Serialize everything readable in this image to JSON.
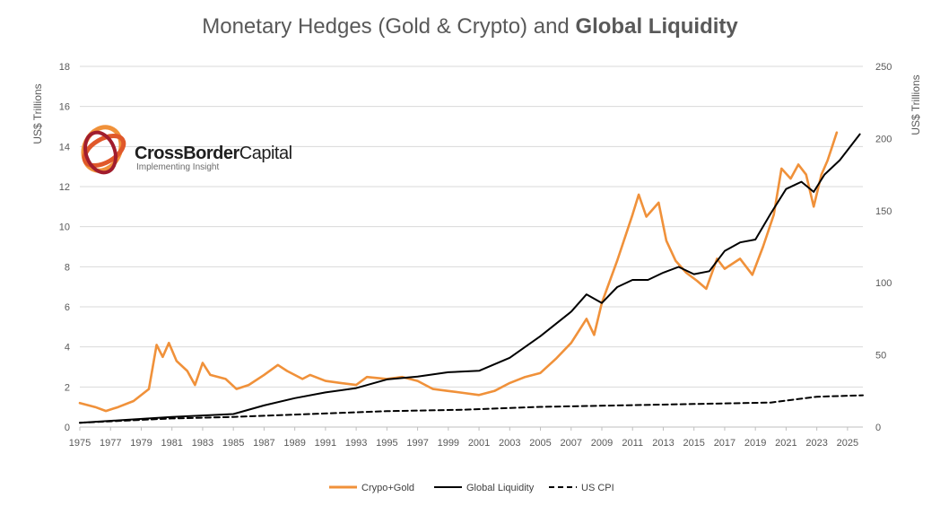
{
  "chart_data": {
    "type": "line",
    "title": "Monetary Hedges (Gold & Crypto) and ",
    "title_bold": "Global Liquidity",
    "ylabel_left": "US$ Trillions",
    "ylabel_right": "US$ Trillions",
    "ylim_left": [
      0,
      18
    ],
    "ylim_right": [
      0,
      250
    ],
    "xlim": [
      1975,
      2026
    ],
    "x_ticks": [
      "1975",
      "1977",
      "1979",
      "1981",
      "1983",
      "1985",
      "1987",
      "1989",
      "1991",
      "1993",
      "1995",
      "1997",
      "1999",
      "2001",
      "2003",
      "2005",
      "2007",
      "2009",
      "2011",
      "2013",
      "2015",
      "2017",
      "2019",
      "2021",
      "2023",
      "2025"
    ],
    "y_ticks_left": [
      "0",
      "2",
      "4",
      "6",
      "8",
      "10",
      "12",
      "14",
      "16",
      "18"
    ],
    "y_ticks_right": [
      "0",
      "50",
      "100",
      "150",
      "200",
      "250"
    ],
    "grid": "horizontal",
    "legend_position": "bottom",
    "series": [
      {
        "name": "Crypo+Gold",
        "axis": "left",
        "color": "#f0913a",
        "style": "solid",
        "points": [
          [
            1975,
            1.2
          ],
          [
            1976,
            1.0
          ],
          [
            1976.7,
            0.8
          ],
          [
            1977.5,
            1.0
          ],
          [
            1978.5,
            1.3
          ],
          [
            1979.5,
            1.9
          ],
          [
            1980,
            4.1
          ],
          [
            1980.4,
            3.5
          ],
          [
            1980.8,
            4.2
          ],
          [
            1981.3,
            3.3
          ],
          [
            1982,
            2.8
          ],
          [
            1982.5,
            2.1
          ],
          [
            1983,
            3.2
          ],
          [
            1983.5,
            2.6
          ],
          [
            1984.5,
            2.4
          ],
          [
            1985.2,
            1.9
          ],
          [
            1986,
            2.1
          ],
          [
            1987,
            2.6
          ],
          [
            1987.9,
            3.1
          ],
          [
            1988.5,
            2.8
          ],
          [
            1989.5,
            2.4
          ],
          [
            1990,
            2.6
          ],
          [
            1991,
            2.3
          ],
          [
            1992,
            2.2
          ],
          [
            1993,
            2.1
          ],
          [
            1993.7,
            2.5
          ],
          [
            1995,
            2.4
          ],
          [
            1996,
            2.5
          ],
          [
            1997,
            2.3
          ],
          [
            1998,
            1.9
          ],
          [
            1999,
            1.8
          ],
          [
            2000,
            1.7
          ],
          [
            2001,
            1.6
          ],
          [
            2002,
            1.8
          ],
          [
            2003,
            2.2
          ],
          [
            2004,
            2.5
          ],
          [
            2005,
            2.7
          ],
          [
            2006,
            3.4
          ],
          [
            2007,
            4.2
          ],
          [
            2008,
            5.4
          ],
          [
            2008.5,
            4.6
          ],
          [
            2009,
            6.2
          ],
          [
            2010,
            8.3
          ],
          [
            2011,
            10.6
          ],
          [
            2011.4,
            11.6
          ],
          [
            2011.9,
            10.5
          ],
          [
            2012.7,
            11.2
          ],
          [
            2013.2,
            9.3
          ],
          [
            2013.8,
            8.3
          ],
          [
            2014.5,
            7.7
          ],
          [
            2015.2,
            7.3
          ],
          [
            2015.8,
            6.9
          ],
          [
            2016.5,
            8.4
          ],
          [
            2017,
            7.9
          ],
          [
            2018,
            8.4
          ],
          [
            2018.8,
            7.6
          ],
          [
            2019.5,
            9.0
          ],
          [
            2020.2,
            10.6
          ],
          [
            2020.7,
            12.9
          ],
          [
            2021.3,
            12.4
          ],
          [
            2021.8,
            13.1
          ],
          [
            2022.3,
            12.6
          ],
          [
            2022.8,
            11.0
          ],
          [
            2023.3,
            12.6
          ],
          [
            2023.7,
            13.3
          ],
          [
            2024,
            14.0
          ],
          [
            2024.3,
            14.7
          ]
        ]
      },
      {
        "name": "Global Liquidity",
        "axis": "right",
        "color": "#000000",
        "style": "solid",
        "points": [
          [
            1975,
            3
          ],
          [
            1978,
            5
          ],
          [
            1981,
            7
          ],
          [
            1983,
            8
          ],
          [
            1985,
            9
          ],
          [
            1987,
            15
          ],
          [
            1989,
            20
          ],
          [
            1991,
            24
          ],
          [
            1993,
            27
          ],
          [
            1995,
            33
          ],
          [
            1997,
            35
          ],
          [
            1999,
            38
          ],
          [
            2001,
            39
          ],
          [
            2003,
            48
          ],
          [
            2005,
            63
          ],
          [
            2007,
            80
          ],
          [
            2008,
            92
          ],
          [
            2009,
            86
          ],
          [
            2010,
            97
          ],
          [
            2011,
            102
          ],
          [
            2012,
            102
          ],
          [
            2013,
            107
          ],
          [
            2014,
            111
          ],
          [
            2015,
            106
          ],
          [
            2016,
            108
          ],
          [
            2017,
            122
          ],
          [
            2018,
            128
          ],
          [
            2019,
            130
          ],
          [
            2020,
            148
          ],
          [
            2021,
            165
          ],
          [
            2022,
            170
          ],
          [
            2022.8,
            163
          ],
          [
            2023.5,
            175
          ],
          [
            2024.5,
            185
          ],
          [
            2025.8,
            203
          ]
        ]
      },
      {
        "name": "US CPI",
        "axis": "right",
        "color": "#000000",
        "style": "dashed",
        "points": [
          [
            1975,
            3
          ],
          [
            1977,
            4
          ],
          [
            1981,
            6
          ],
          [
            1985,
            7
          ],
          [
            1990,
            9
          ],
          [
            1995,
            11
          ],
          [
            2000,
            12
          ],
          [
            2005,
            14
          ],
          [
            2010,
            15
          ],
          [
            2015,
            16
          ],
          [
            2020,
            17
          ],
          [
            2021.5,
            19
          ],
          [
            2023,
            21
          ],
          [
            2026,
            22
          ]
        ]
      }
    ]
  },
  "logo": {
    "name_bold": "CrossBorder",
    "name_light": "Capital",
    "tagline": "Implementing Insight"
  }
}
